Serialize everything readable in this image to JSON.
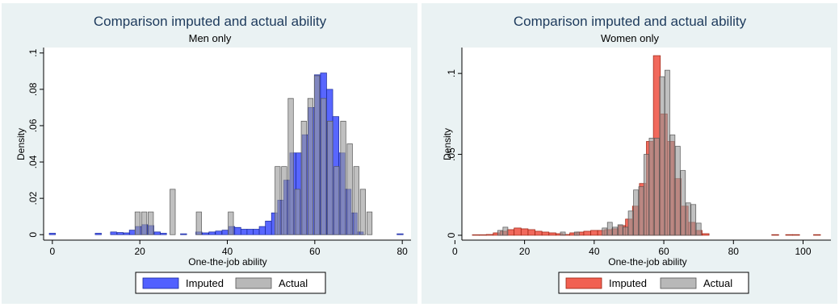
{
  "colors": {
    "panel_bg": "#eaf2f3",
    "plot_bg": "#ffffff",
    "men_imputed": "#3344ff",
    "women_imputed": "#ee4433",
    "actual": "#9a9a9a"
  },
  "chart_data": [
    {
      "type": "bar",
      "title": "Comparison imputed and actual ability",
      "subtitle": "Men only",
      "xlabel": "One-the-job ability",
      "ylabel": "Density",
      "xlim": [
        -2,
        82
      ],
      "ylim": [
        -0.003,
        0.103
      ],
      "xticks": [
        0,
        20,
        40,
        60,
        80
      ],
      "xtick_labels": [
        "0",
        "20",
        "40",
        "60",
        "80"
      ],
      "yticks": [
        0,
        0.02,
        0.04,
        0.06,
        0.08,
        0.1
      ],
      "ytick_labels": [
        "0",
        ".02",
        ".04",
        ".06",
        ".08",
        ".1"
      ],
      "grid": false,
      "legend_position": "bottom",
      "series": [
        {
          "name": "Imputed",
          "bin_width": 1.4,
          "bins": [
            [
              0,
              0.0008
            ],
            [
              10.5,
              0.0008
            ],
            [
              14,
              0.0015
            ],
            [
              15.5,
              0.0012
            ],
            [
              17,
              0.001
            ],
            [
              18.3,
              0.0025
            ],
            [
              19.7,
              0.0045
            ],
            [
              21.1,
              0.0055
            ],
            [
              22.5,
              0.005
            ],
            [
              24,
              0.0015
            ],
            [
              25.4,
              0.0008
            ],
            [
              30,
              0.0005
            ],
            [
              33.5,
              0.0015
            ],
            [
              35,
              0.001
            ],
            [
              36.5,
              0.0015
            ],
            [
              38,
              0.002
            ],
            [
              39.5,
              0.0025
            ],
            [
              41,
              0.0045
            ],
            [
              42.4,
              0.004
            ],
            [
              43.8,
              0.003
            ],
            [
              45.2,
              0.003
            ],
            [
              46.6,
              0.003
            ],
            [
              48,
              0.0045
            ],
            [
              49.4,
              0.0075
            ],
            [
              50.8,
              0.012
            ],
            [
              52.2,
              0.019
            ],
            [
              53.6,
              0.03
            ],
            [
              55,
              0.045
            ],
            [
              56.4,
              0.045
            ],
            [
              57.8,
              0.055
            ],
            [
              59.2,
              0.07
            ],
            [
              60.6,
              0.088
            ],
            [
              62,
              0.089
            ],
            [
              63.4,
              0.08
            ],
            [
              64.8,
              0.065
            ],
            [
              66.2,
              0.045
            ],
            [
              67.6,
              0.025
            ],
            [
              69,
              0.012
            ],
            [
              70.4,
              0.0015
            ],
            [
              79.5,
              0.0005
            ]
          ]
        },
        {
          "name": "Actual",
          "bin_width": 1.2,
          "bins": [
            [
              19.5,
              0.0125
            ],
            [
              21,
              0.0125
            ],
            [
              22.5,
              0.0125
            ],
            [
              27.5,
              0.025
            ],
            [
              33.5,
              0.0125
            ],
            [
              40.8,
              0.0125
            ],
            [
              51.5,
              0.0375
            ],
            [
              53,
              0.0375
            ],
            [
              54.5,
              0.075
            ],
            [
              56,
              0.025
            ],
            [
              57.5,
              0.0625
            ],
            [
              59,
              0.075
            ],
            [
              60.5,
              0.0875
            ],
            [
              62,
              0.075
            ],
            [
              63.5,
              0.0625
            ],
            [
              65,
              0.0375
            ],
            [
              66.5,
              0.0625
            ],
            [
              68,
              0.05
            ],
            [
              69.5,
              0.0375
            ],
            [
              71,
              0.025
            ],
            [
              72.5,
              0.0125
            ]
          ]
        }
      ]
    },
    {
      "type": "bar",
      "title": "Comparison imputed and actual ability",
      "subtitle": "Women only",
      "xlabel": "One-the-job ability",
      "ylabel": "Density",
      "xlim": [
        2,
        108
      ],
      "ylim": [
        -0.003,
        0.116
      ],
      "xticks": [
        0,
        20,
        40,
        60,
        80,
        100
      ],
      "xtick_labels": [
        "0",
        "20",
        "40",
        "60",
        "80",
        "100"
      ],
      "yticks": [
        0,
        0.05,
        0.1
      ],
      "ytick_labels": [
        "0",
        ".05",
        ".1"
      ],
      "grid": false,
      "legend_position": "bottom",
      "series": [
        {
          "name": "Imputed",
          "bin_width": 2.0,
          "bins": [
            [
              6,
              0.0003
            ],
            [
              8,
              0.0003
            ],
            [
              10,
              0.0005
            ],
            [
              12,
              0.0015
            ],
            [
              14,
              0.0025
            ],
            [
              16,
              0.0035
            ],
            [
              18,
              0.0045
            ],
            [
              20,
              0.004
            ],
            [
              22,
              0.0035
            ],
            [
              24,
              0.0025
            ],
            [
              26,
              0.002
            ],
            [
              28,
              0.0015
            ],
            [
              30,
              0.001
            ],
            [
              32,
              0.0005
            ],
            [
              34,
              0.0015
            ],
            [
              36,
              0.002
            ],
            [
              38,
              0.0025
            ],
            [
              40,
              0.003
            ],
            [
              42,
              0.003
            ],
            [
              44,
              0.0035
            ],
            [
              46,
              0.004
            ],
            [
              48,
              0.006
            ],
            [
              50,
              0.01
            ],
            [
              52,
              0.018
            ],
            [
              54,
              0.032
            ],
            [
              56,
              0.058
            ],
            [
              58,
              0.111
            ],
            [
              60,
              0.075
            ],
            [
              62,
              0.058
            ],
            [
              64,
              0.035
            ],
            [
              66,
              0.018
            ],
            [
              68,
              0.008
            ],
            [
              70,
              0.003
            ],
            [
              72,
              0.001
            ],
            [
              92,
              0.0004
            ],
            [
              96,
              0.0004
            ],
            [
              98,
              0.0004
            ],
            [
              104,
              0.0004
            ]
          ]
        },
        {
          "name": "Actual",
          "bin_width": 1.4,
          "bins": [
            [
              13,
              0.003
            ],
            [
              14.5,
              0.005
            ],
            [
              31,
              0.002
            ],
            [
              35,
              0.002
            ],
            [
              43,
              0.0045
            ],
            [
              44.5,
              0.008
            ],
            [
              46,
              0.005
            ],
            [
              47.5,
              0.0065
            ],
            [
              49,
              0.005
            ],
            [
              50.5,
              0.015
            ],
            [
              52,
              0.028
            ],
            [
              53.5,
              0.03
            ],
            [
              55,
              0.05
            ],
            [
              56.5,
              0.06
            ],
            [
              58,
              0.06
            ],
            [
              59.5,
              0.098
            ],
            [
              61,
              0.102
            ],
            [
              62.5,
              0.062
            ],
            [
              64,
              0.055
            ],
            [
              65.5,
              0.04
            ],
            [
              67,
              0.02
            ],
            [
              68.5,
              0.019
            ],
            [
              70,
              0.0075
            ]
          ]
        }
      ]
    }
  ]
}
